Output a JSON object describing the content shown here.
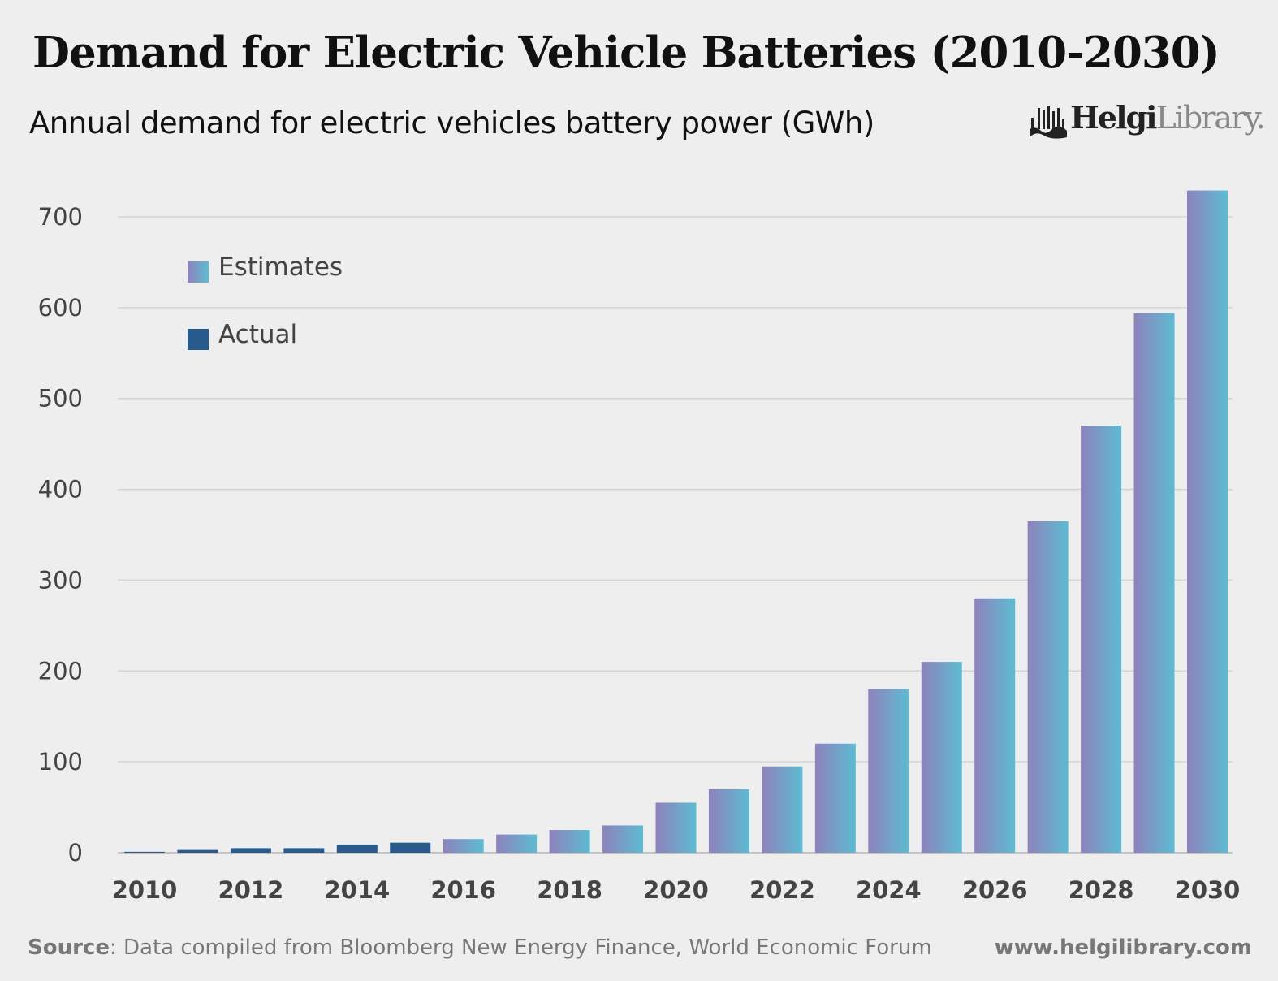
{
  "title": "Demand for Electric Vehicle Batteries (2010-2030)",
  "subtitle": "Annual demand for electric vehicles battery power (GWh)",
  "logo": {
    "part1": "Helgi",
    "part2": "Library."
  },
  "source_label": "Source",
  "source_text": ": Data compiled from Bloomberg New Energy Finance, World Economic Forum",
  "website": "www.helgilibrary.com",
  "colors": {
    "actual": "#275b8e",
    "estimate_gradient": [
      "#8e82bb",
      "#5cbcd2"
    ],
    "background": "#eeeeee",
    "grid": "#d0d0d0"
  },
  "chart_data": {
    "type": "bar",
    "title": "Demand for Electric Vehicle Batteries (2010-2030)",
    "subtitle": "Annual demand for electric vehicles battery power (GWh)",
    "categories": [
      2010,
      2011,
      2012,
      2013,
      2014,
      2015,
      2016,
      2017,
      2018,
      2019,
      2020,
      2021,
      2022,
      2023,
      2024,
      2025,
      2026,
      2027,
      2028,
      2029,
      2030
    ],
    "values": [
      1,
      3,
      5,
      5,
      9,
      11,
      15,
      20,
      25,
      30,
      55,
      70,
      95,
      120,
      180,
      210,
      280,
      365,
      470,
      594,
      729
    ],
    "series_type": [
      "Actual",
      "Actual",
      "Actual",
      "Actual",
      "Actual",
      "Actual",
      "Estimates",
      "Estimates",
      "Estimates",
      "Estimates",
      "Estimates",
      "Estimates",
      "Estimates",
      "Estimates",
      "Estimates",
      "Estimates",
      "Estimates",
      "Estimates",
      "Estimates",
      "Estimates",
      "Estimates"
    ],
    "legend": [
      "Estimates",
      "Actual"
    ],
    "legend_placement": "top-left",
    "x_tick_labels": [
      "2010",
      "2012",
      "2014",
      "2016",
      "2018",
      "2020",
      "2022",
      "2024",
      "2026",
      "2028",
      "2030"
    ],
    "y_ticks": [
      0,
      100,
      200,
      300,
      400,
      500,
      600,
      700
    ],
    "ylim": [
      0,
      730
    ],
    "grid": true,
    "xlabel": "",
    "ylabel": ""
  }
}
